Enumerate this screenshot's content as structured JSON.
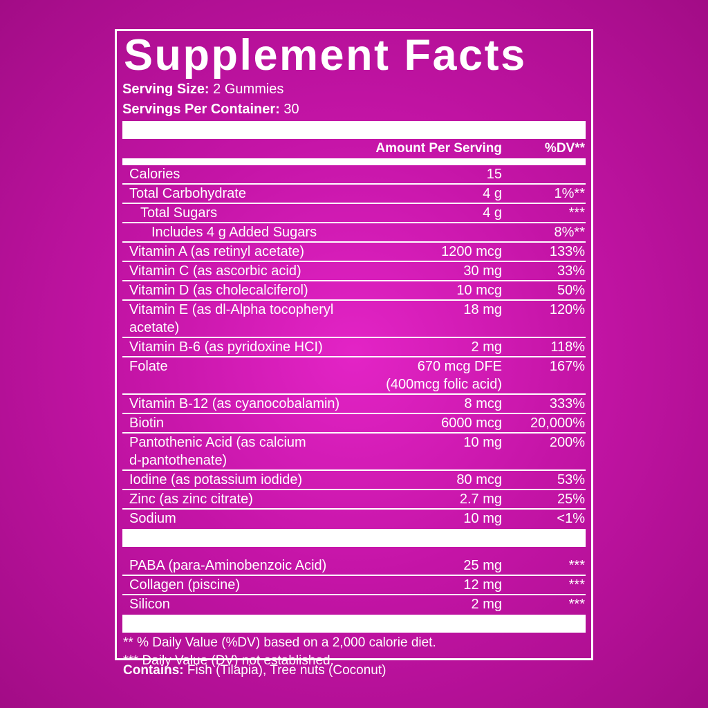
{
  "title": "Supplement Facts",
  "serving_size": {
    "label": "Serving Size:",
    "value": "2 Gummies"
  },
  "servings_per_container": {
    "label": "Servings Per Container:",
    "value": "30"
  },
  "columns": {
    "amount": "Amount Per Serving",
    "dv": "%DV**"
  },
  "sections": [
    [
      {
        "name": "Calories",
        "amount": "15"
      },
      {
        "name": "Total Carbohydrate",
        "amount": "4 g",
        "dv": "1%**"
      },
      {
        "name": "Total Sugars",
        "amount": "4 g",
        "dv": "***",
        "indent": 1
      },
      {
        "name": "Includes 4 g Added Sugars",
        "dv": "8%**",
        "indent": 2
      },
      {
        "name": "Vitamin A (as retinyl acetate)",
        "amount": "1200 mcg",
        "dv": "133%"
      },
      {
        "name": "Vitamin C (as ascorbic acid)",
        "amount": "30 mg",
        "dv": "33%"
      },
      {
        "name": "Vitamin D (as cholecalciferol)",
        "amount": "10 mcg",
        "dv": "50%"
      },
      {
        "name": "Vitamin E (as dl-Alpha tocopheryl acetate)",
        "amount": "18 mg",
        "dv": "120%"
      },
      {
        "name": "Vitamin B-6 (as pyridoxine HCI)",
        "amount": "2 mg",
        "dv": "118%"
      },
      {
        "name": "Folate",
        "amount": [
          "670 mcg DFE",
          "(400mcg folic acid)"
        ],
        "dv": "167%"
      },
      {
        "name": "Vitamin B-12 (as cyanocobalamin)",
        "amount": "8 mcg",
        "dv": "333%"
      },
      {
        "name": "Biotin",
        "amount": "6000 mcg",
        "dv": "20,000%"
      },
      {
        "name": [
          "Pantothenic Acid (as calcium",
          "d-pantothenate)"
        ],
        "amount": "10 mg",
        "dv": "200%"
      },
      {
        "name": "Iodine (as potassium iodide)",
        "amount": "80 mcg",
        "dv": "53%"
      },
      {
        "name": "Zinc (as zinc citrate)",
        "amount": "2.7 mg",
        "dv": "25%"
      },
      {
        "name": "Sodium",
        "amount": "10 mg",
        "dv": "<1%"
      }
    ],
    [
      {
        "name": "PABA (para-Aminobenzoic Acid)",
        "amount": "25 mg",
        "dv": "***"
      },
      {
        "name": "Collagen (piscine)",
        "amount": "12 mg",
        "dv": "***"
      },
      {
        "name": "Silicon",
        "amount": "2 mg",
        "dv": "***"
      }
    ]
  ],
  "footnotes": [
    "** % Daily Value (%DV) based on a 2,000 calorie diet.",
    "*** Daily Value (DV) not established."
  ],
  "contains": {
    "label": "Contains:",
    "value": "Fish (Tilapia), Tree nuts (Coconut)"
  }
}
